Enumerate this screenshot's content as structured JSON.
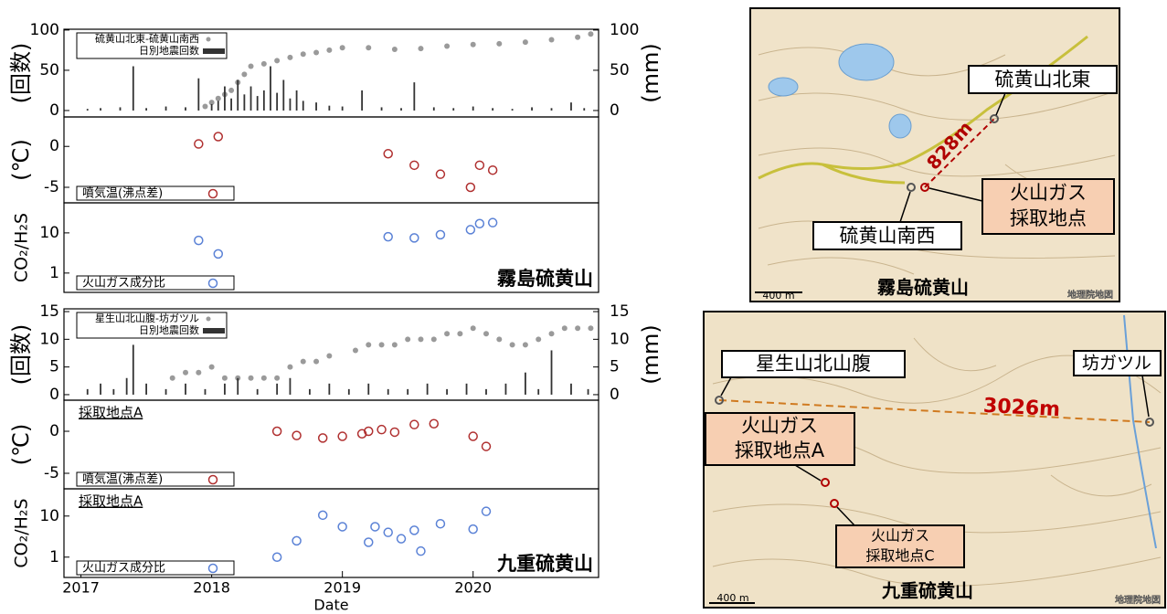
{
  "chart_data": [
    {
      "type": "combo",
      "ylabel": "(回数)",
      "y2label": "(mm)",
      "xlim": [
        2016.87,
        2020.96
      ],
      "ylim": [
        -8,
        101
      ],
      "yticks": [
        0,
        50,
        100
      ],
      "y2lim": [
        -8,
        101
      ],
      "y2ticks": [
        0,
        50,
        100
      ],
      "series": [
        {
          "name": "硫黄山北東-硫黄山南西",
          "type": "scatter",
          "marker": "filled",
          "color": "#9a9a9a",
          "axis": "y2",
          "x": [
            2017.95,
            2018.0,
            2018.05,
            2018.1,
            2018.15,
            2018.2,
            2018.25,
            2018.3,
            2018.4,
            2018.5,
            2018.6,
            2018.7,
            2018.8,
            2018.9,
            2019.0,
            2019.2,
            2019.4,
            2019.6,
            2019.8,
            2020.0,
            2020.2,
            2020.4,
            2020.6,
            2020.8,
            2020.9
          ],
          "values": [
            5,
            10,
            15,
            20,
            25,
            35,
            45,
            55,
            58,
            62,
            66,
            70,
            72,
            75,
            78,
            78,
            76,
            77,
            80,
            82,
            83,
            85,
            88,
            91,
            95
          ]
        },
        {
          "name": "日別地震回数",
          "type": "bar",
          "color": "#333333",
          "x": [
            2017.05,
            2017.15,
            2017.3,
            2017.4,
            2017.5,
            2017.65,
            2017.8,
            2017.9,
            2018.0,
            2018.05,
            2018.1,
            2018.15,
            2018.2,
            2018.25,
            2018.3,
            2018.35,
            2018.4,
            2018.45,
            2018.5,
            2018.55,
            2018.6,
            2018.65,
            2018.7,
            2018.8,
            2018.9,
            2019.0,
            2019.15,
            2019.3,
            2019.45,
            2019.55,
            2019.7,
            2019.85,
            2020.0,
            2020.15,
            2020.3,
            2020.45,
            2020.6,
            2020.75,
            2020.85
          ],
          "values": [
            2,
            3,
            4,
            55,
            3,
            5,
            4,
            40,
            8,
            12,
            30,
            15,
            38,
            20,
            30,
            18,
            25,
            55,
            22,
            38,
            15,
            25,
            12,
            10,
            6,
            5,
            25,
            4,
            3,
            35,
            4,
            3,
            5,
            3,
            2,
            4,
            3,
            10,
            3
          ]
        }
      ]
    },
    {
      "type": "scatter",
      "ylabel": "(℃)",
      "xlim": [
        2016.87,
        2020.96
      ],
      "ylim": [
        -6.9,
        3.6
      ],
      "yticks": [
        0,
        -5
      ],
      "series": [
        {
          "name": "噴気温(沸点差)",
          "marker": "open",
          "color": "#b03030",
          "x": [
            2017.9,
            2018.05,
            2019.35,
            2019.55,
            2019.75,
            2019.98,
            2020.05,
            2020.15
          ],
          "values": [
            0.3,
            1.2,
            -0.9,
            -2.3,
            -3.4,
            -5.0,
            -2.3,
            -2.9
          ]
        }
      ]
    },
    {
      "type": "scatter",
      "ylabel": "CO₂/H₂S",
      "log": true,
      "site": "霧島硫黄山",
      "xlim": [
        2016.87,
        2020.96
      ],
      "ylim": [
        0.33,
        56
      ],
      "yticks": [
        1,
        10
      ],
      "series": [
        {
          "name": "火山ガス成分比",
          "marker": "open",
          "color": "#5b82d6",
          "x": [
            2017.9,
            2018.05,
            2019.35,
            2019.55,
            2019.75,
            2019.98,
            2020.05,
            2020.15
          ],
          "values": [
            6.5,
            3,
            8,
            7.5,
            9,
            12,
            17,
            18
          ]
        }
      ]
    },
    {
      "type": "combo",
      "ylabel": "(回数)",
      "y2label": "(mm)",
      "xlim": [
        2016.87,
        2020.96
      ],
      "ylim": [
        -1,
        15.5
      ],
      "yticks": [
        0,
        5,
        10,
        15
      ],
      "y2lim": [
        -1,
        15.5
      ],
      "y2ticks": [
        0,
        5,
        10,
        15
      ],
      "series": [
        {
          "name": "星生山北山腹-坊ガツル",
          "type": "scatter",
          "marker": "filled",
          "color": "#9a9a9a",
          "axis": "y2",
          "x": [
            2017.7,
            2017.8,
            2017.9,
            2018.0,
            2018.1,
            2018.2,
            2018.3,
            2018.4,
            2018.5,
            2018.6,
            2018.7,
            2018.8,
            2018.9,
            2019.1,
            2019.2,
            2019.3,
            2019.4,
            2019.5,
            2019.6,
            2019.7,
            2019.8,
            2019.9,
            2020.0,
            2020.1,
            2020.2,
            2020.3,
            2020.4,
            2020.5,
            2020.6,
            2020.7,
            2020.8,
            2020.9
          ],
          "values": [
            3,
            4,
            4,
            5,
            3,
            3,
            3,
            3,
            3,
            5,
            6,
            6,
            7,
            8,
            9,
            9,
            9,
            10,
            10,
            10,
            11,
            11,
            12,
            11,
            10,
            9,
            9,
            10,
            11,
            12,
            12,
            12
          ]
        },
        {
          "name": "日別地震回数",
          "type": "bar",
          "color": "#333333",
          "x": [
            2017.05,
            2017.15,
            2017.25,
            2017.35,
            2017.4,
            2017.5,
            2017.65,
            2017.8,
            2017.95,
            2018.1,
            2018.2,
            2018.35,
            2018.5,
            2018.6,
            2018.75,
            2018.9,
            2019.05,
            2019.2,
            2019.35,
            2019.5,
            2019.65,
            2019.8,
            2019.95,
            2020.1,
            2020.25,
            2020.4,
            2020.5,
            2020.6,
            2020.75,
            2020.88
          ],
          "values": [
            1,
            2,
            1,
            3,
            9,
            2,
            1,
            2,
            1,
            2,
            3,
            1,
            2,
            3,
            1,
            2,
            1,
            2,
            1,
            1,
            2,
            1,
            2,
            1,
            2,
            4,
            1,
            8,
            2,
            1
          ]
        }
      ]
    },
    {
      "type": "scatter",
      "ylabel": "(℃)",
      "annotation": "採取地点A",
      "xlim": [
        2016.87,
        2020.96
      ],
      "ylim": [
        -6.85,
        3.7
      ],
      "yticks": [
        0,
        -5
      ],
      "series": [
        {
          "name": "噴気温(沸点差)",
          "marker": "open",
          "color": "#b03030",
          "x": [
            2018.5,
            2018.65,
            2018.85,
            2019.0,
            2019.15,
            2019.2,
            2019.3,
            2019.4,
            2019.55,
            2019.7,
            2020.0,
            2020.1
          ],
          "values": [
            0,
            -0.5,
            -0.8,
            -0.6,
            -0.3,
            0,
            0.2,
            -0.1,
            0.8,
            0.9,
            -0.6,
            -1.8
          ]
        }
      ]
    },
    {
      "type": "scatter",
      "ylabel": "CO₂/H₂S",
      "log": true,
      "annotation": "採取地点A",
      "site": "九重硫黄山",
      "xlabel": "Date",
      "xlim": [
        2016.87,
        2020.96
      ],
      "ylim": [
        0.32,
        46
      ],
      "yticks": [
        1,
        10
      ],
      "xticks": [
        2017,
        2018,
        2019,
        2020
      ],
      "series": [
        {
          "name": "火山ガス成分比",
          "marker": "open",
          "color": "#5b82d6",
          "x": [
            2018.5,
            2018.65,
            2018.85,
            2019.0,
            2019.2,
            2019.25,
            2019.35,
            2019.45,
            2019.55,
            2019.6,
            2019.75,
            2020.0,
            2020.1
          ],
          "values": [
            1,
            2.5,
            10.5,
            5.5,
            2.3,
            5.5,
            4,
            2.8,
            4.5,
            1.4,
            6.5,
            4.8,
            13
          ]
        }
      ]
    }
  ],
  "maps": [
    {
      "title": "霧島硫黄山",
      "scale": "400 m",
      "credit": "地理院地図",
      "distance": "828m",
      "sites": [
        {
          "lines": [
            "硫黄山北東"
          ]
        },
        {
          "lines": [
            "火山ガス",
            "採取地点"
          ]
        },
        {
          "lines": [
            "硫黄山南西"
          ]
        }
      ]
    },
    {
      "title": "九重硫黄山",
      "scale": "400 m",
      "credit": "地理院地図",
      "distance": "3026m",
      "sites": [
        {
          "lines": [
            "星生山北山腹"
          ]
        },
        {
          "lines": [
            "坊ガツル"
          ]
        },
        {
          "lines": [
            "火山ガス",
            "採取地点A"
          ]
        },
        {
          "lines": [
            "火山ガス",
            "採取地点C"
          ]
        }
      ]
    }
  ]
}
